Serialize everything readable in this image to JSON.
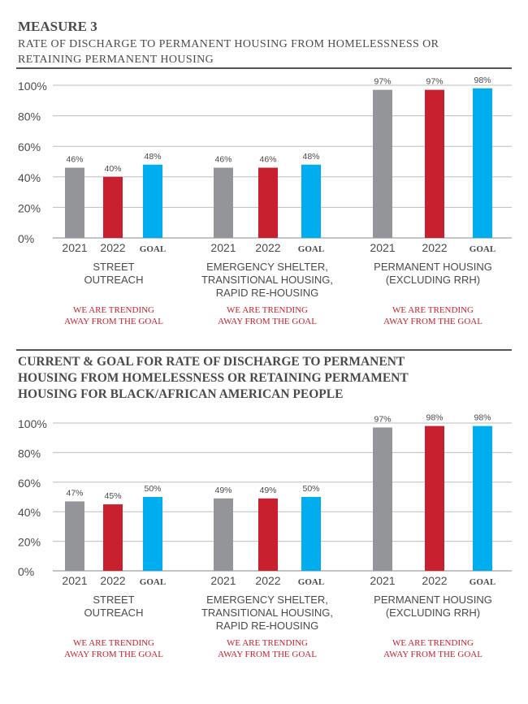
{
  "colors": {
    "y2021": "#939598",
    "y2022": "#c8202f",
    "goal": "#00aeef",
    "trend_text": "#c8202f",
    "grid": "#bdbdbd",
    "rule": "#555555"
  },
  "header": {
    "measure": "MEASURE 3",
    "subtitle_lines": [
      "RATE OF DISCHARGE TO PERMANENT HOUSING FROM HOMELESSNESS OR",
      "RETAINING PERMANENT HOUSING"
    ]
  },
  "chart_data": [
    {
      "type": "bar",
      "title": "",
      "ylim": [
        0,
        100
      ],
      "yticks": [
        "0%",
        "20%",
        "40%",
        "60%",
        "80%",
        "100%"
      ],
      "grid": true,
      "bar_labels": [
        "2021",
        "2022",
        "GOAL"
      ],
      "groups": [
        {
          "label_lines": [
            "STREET",
            "OUTREACH"
          ],
          "values": [
            46,
            40,
            48
          ],
          "value_labels": [
            "46%",
            "40%",
            "48%"
          ],
          "note_lines": [
            "WE ARE TRENDING",
            "AWAY FROM THE GOAL"
          ]
        },
        {
          "label_lines": [
            "EMERGENCY SHELTER,",
            "TRANSITIONAL HOUSING,",
            "RAPID RE-HOUSING"
          ],
          "values": [
            46,
            46,
            48
          ],
          "value_labels": [
            "46%",
            "46%",
            "48%"
          ],
          "note_lines": [
            "WE ARE TRENDING",
            "AWAY FROM THE GOAL"
          ]
        },
        {
          "label_lines": [
            "PERMANENT HOUSING",
            "(EXCLUDING RRH)"
          ],
          "values": [
            97,
            97,
            98
          ],
          "value_labels": [
            "97%",
            "97%",
            "98%"
          ],
          "note_lines": [
            "WE ARE TRENDING",
            "AWAY FROM THE GOAL"
          ]
        }
      ]
    },
    {
      "type": "bar",
      "title_lines": [
        "CURRENT & GOAL FOR RATE OF DISCHARGE TO PERMANENT",
        "HOUSING FROM HOMELESSNESS OR RETAINING PERMAMENT",
        "HOUSING FOR BLACK/AFRICAN AMERICAN PEOPLE"
      ],
      "ylim": [
        0,
        100
      ],
      "yticks": [
        "0%",
        "20%",
        "40%",
        "60%",
        "80%",
        "100%"
      ],
      "grid": true,
      "bar_labels": [
        "2021",
        "2022",
        "GOAL"
      ],
      "groups": [
        {
          "label_lines": [
            "STREET",
            "OUTREACH"
          ],
          "values": [
            47,
            45,
            50
          ],
          "value_labels": [
            "47%",
            "45%",
            "50%"
          ],
          "note_lines": [
            "WE ARE TRENDING",
            "AWAY FROM THE GOAL"
          ]
        },
        {
          "label_lines": [
            "EMERGENCY SHELTER,",
            "TRANSITIONAL HOUSING,",
            "RAPID RE-HOUSING"
          ],
          "values": [
            49,
            49,
            50
          ],
          "value_labels": [
            "49%",
            "49%",
            "50%"
          ],
          "note_lines": [
            "WE ARE TRENDING",
            "AWAY FROM THE GOAL"
          ]
        },
        {
          "label_lines": [
            "PERMANENT HOUSING",
            "(EXCLUDING RRH)"
          ],
          "values": [
            97,
            98,
            98
          ],
          "value_labels": [
            "97%",
            "98%",
            "98%"
          ],
          "note_lines": [
            "WE ARE TRENDING",
            "AWAY FROM THE GOAL"
          ]
        }
      ]
    }
  ]
}
